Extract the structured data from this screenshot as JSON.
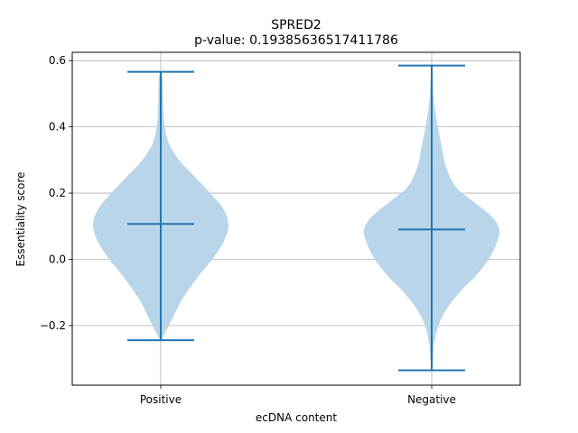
{
  "chart_data": {
    "type": "violin",
    "title": "SPRED2",
    "subtitle": "p-value: 0.19385636517411786",
    "xlabel": "ecDNA content",
    "ylabel": "Essentiality score",
    "ylim": [
      -0.38,
      0.625
    ],
    "yticks": [
      -0.2,
      0.0,
      0.2,
      0.4,
      0.6
    ],
    "ytick_labels": [
      "−0.2",
      "0.0",
      "0.2",
      "0.4",
      "0.6"
    ],
    "grid": true,
    "colors": {
      "body": "#b9d5ea",
      "line": "#1f77b4",
      "grid": "#b0b0b0"
    },
    "categories": [
      "Positive",
      "Negative"
    ],
    "violins": [
      {
        "category": "Positive",
        "min": -0.244,
        "max": 0.566,
        "median": 0.107,
        "profile": [
          [
            -0.244,
            0.01
          ],
          [
            -0.22,
            0.07
          ],
          [
            -0.18,
            0.17
          ],
          [
            -0.12,
            0.32
          ],
          [
            -0.05,
            0.56
          ],
          [
            0.0,
            0.76
          ],
          [
            0.05,
            0.92
          ],
          [
            0.1,
            1.0
          ],
          [
            0.15,
            0.93
          ],
          [
            0.2,
            0.73
          ],
          [
            0.25,
            0.5
          ],
          [
            0.3,
            0.27
          ],
          [
            0.35,
            0.12
          ],
          [
            0.4,
            0.06
          ],
          [
            0.45,
            0.04
          ],
          [
            0.5,
            0.035
          ],
          [
            0.54,
            0.03
          ],
          [
            0.566,
            0.01
          ]
        ]
      },
      {
        "category": "Negative",
        "min": -0.335,
        "max": 0.585,
        "median": 0.09,
        "profile": [
          [
            -0.335,
            0.01
          ],
          [
            -0.3,
            0.02
          ],
          [
            -0.25,
            0.04
          ],
          [
            -0.2,
            0.1
          ],
          [
            -0.15,
            0.22
          ],
          [
            -0.1,
            0.41
          ],
          [
            -0.05,
            0.65
          ],
          [
            0.0,
            0.84
          ],
          [
            0.05,
            0.96
          ],
          [
            0.09,
            1.0
          ],
          [
            0.13,
            0.88
          ],
          [
            0.18,
            0.58
          ],
          [
            0.22,
            0.35
          ],
          [
            0.28,
            0.21
          ],
          [
            0.35,
            0.14
          ],
          [
            0.4,
            0.09
          ],
          [
            0.45,
            0.05
          ],
          [
            0.5,
            0.025
          ],
          [
            0.585,
            0.01
          ]
        ]
      }
    ]
  }
}
